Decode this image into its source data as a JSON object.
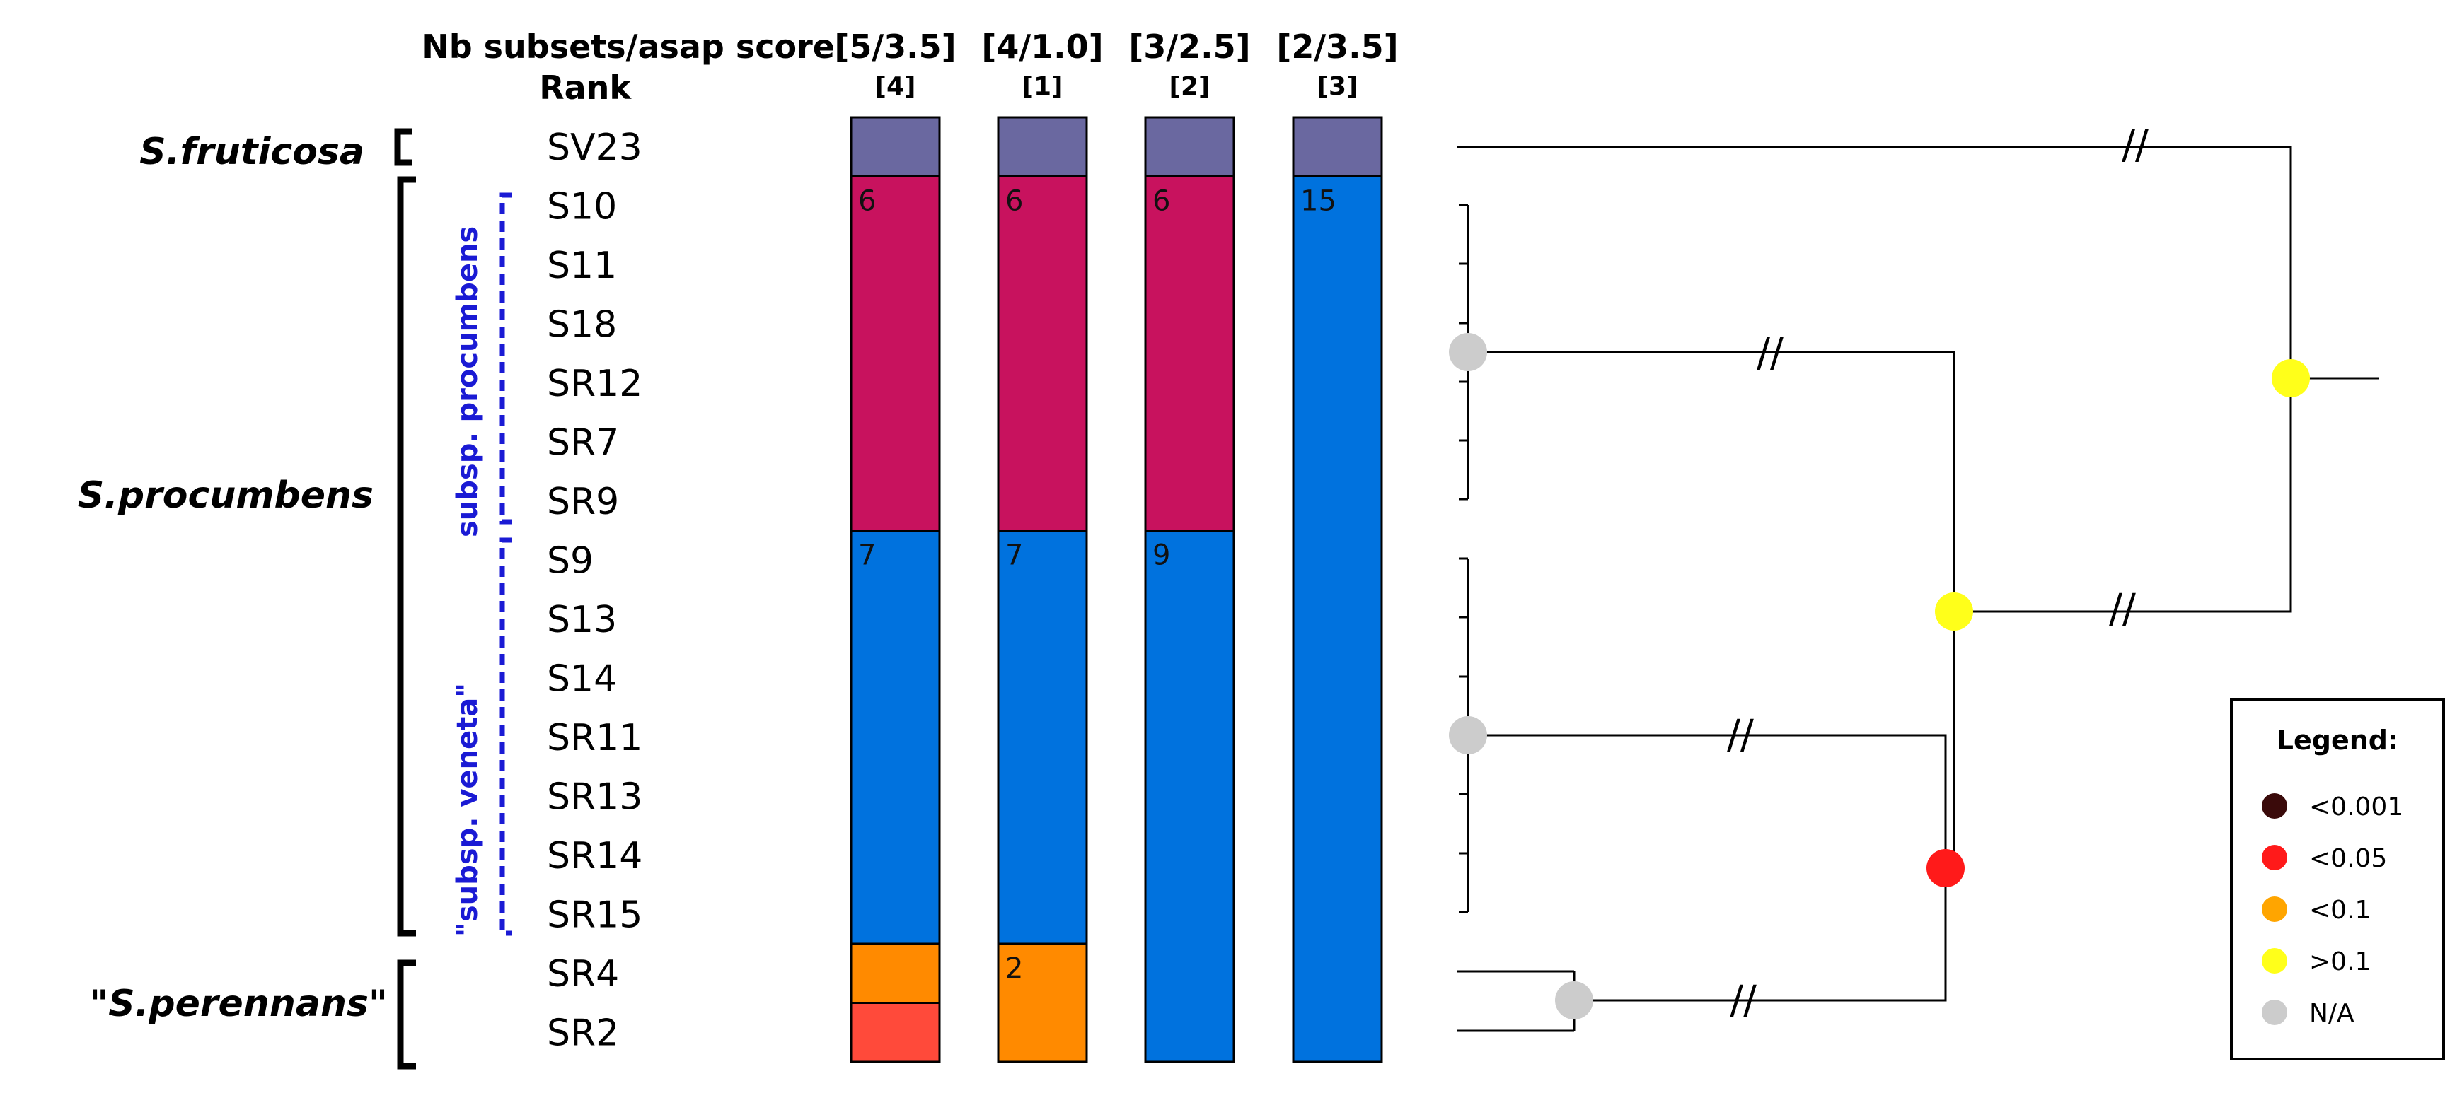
{
  "header": {
    "row1_label": "Nb subsets/asap score",
    "row2_label": "Rank",
    "columns": [
      {
        "score": "[5/3.5]",
        "rank": "[4]",
        "color": "#000000"
      },
      {
        "score": "[4/1.0]",
        "rank": "[1]",
        "color": "#1a1ad4"
      },
      {
        "score": "[3/2.5]",
        "rank": "[2]",
        "color": "#000000"
      },
      {
        "score": "[2/3.5]",
        "rank": "[3]",
        "color": "#000000"
      }
    ]
  },
  "species": [
    {
      "label": "S.fruticosa"
    },
    {
      "label": "S.procumbens"
    },
    {
      "label": "\"S.perennans\""
    }
  ],
  "subspecies": [
    {
      "label": "subsp. procumbens"
    },
    {
      "label": "\"subsp. veneta\""
    }
  ],
  "samples": [
    "SV23",
    "S10",
    "S11",
    "S18",
    "SR12",
    "SR7",
    "SR9",
    "S9",
    "S13",
    "S14",
    "SR11",
    "SR13",
    "SR14",
    "SR15",
    "SR4",
    "SR2"
  ],
  "colors": {
    "fruticosa": "#6a68a0",
    "magenta": "#c8125e",
    "blue": "#0072de",
    "orange": "#ff8a00",
    "red_orange": "#ff4a3a",
    "line": "#000000",
    "subsp_blue": "#1a1ad4"
  },
  "bar_columns": [
    {
      "segments": [
        {
          "from": 0,
          "to": 1,
          "color": "#6a68a0",
          "label": ""
        },
        {
          "from": 1,
          "to": 7,
          "color": "#c8125e",
          "label": "6"
        },
        {
          "from": 7,
          "to": 14,
          "color": "#0072de",
          "label": "7"
        },
        {
          "from": 14,
          "to": 15,
          "color": "#ff8a00",
          "label": ""
        },
        {
          "from": 15,
          "to": 16,
          "color": "#ff4a3a",
          "label": ""
        }
      ]
    },
    {
      "segments": [
        {
          "from": 0,
          "to": 1,
          "color": "#6a68a0",
          "label": ""
        },
        {
          "from": 1,
          "to": 7,
          "color": "#c8125e",
          "label": "6"
        },
        {
          "from": 7,
          "to": 14,
          "color": "#0072de",
          "label": "7"
        },
        {
          "from": 14,
          "to": 16,
          "color": "#ff8a00",
          "label": "2"
        }
      ]
    },
    {
      "segments": [
        {
          "from": 0,
          "to": 1,
          "color": "#6a68a0",
          "label": ""
        },
        {
          "from": 1,
          "to": 7,
          "color": "#c8125e",
          "label": "6"
        },
        {
          "from": 7,
          "to": 16,
          "color": "#0072de",
          "label": "9"
        }
      ]
    },
    {
      "segments": [
        {
          "from": 0,
          "to": 1,
          "color": "#6a68a0",
          "label": ""
        },
        {
          "from": 1,
          "to": 16,
          "color": "#0072de",
          "label": "15"
        }
      ]
    }
  ],
  "legend": {
    "title": "Legend:",
    "items": [
      {
        "label": "<0.001",
        "color": "#3a0a0a"
      },
      {
        "label": "<0.05",
        "color": "#ff1a1a"
      },
      {
        "label": "<0.1",
        "color": "#ffa500"
      },
      {
        "label": ">0.1",
        "color": "#ffff1a"
      },
      {
        "label": "N/A",
        "color": "#cccccc"
      }
    ]
  },
  "tree": {
    "break_mark": "//",
    "nodes": [
      {
        "name": "procumbens-clade",
        "support": "N/A",
        "color": "#cccccc"
      },
      {
        "name": "veneta-clade",
        "support": "N/A",
        "color": "#cccccc"
      },
      {
        "name": "perennans-clade",
        "support": "N/A",
        "color": "#cccccc"
      },
      {
        "name": "veneta-perennans",
        "support": "<0.05",
        "color": "#ff1a1a"
      },
      {
        "name": "procumbens-all",
        "support": ">0.1",
        "color": "#ffff1a"
      },
      {
        "name": "root",
        "support": ">0.1",
        "color": "#ffff1a"
      }
    ]
  }
}
